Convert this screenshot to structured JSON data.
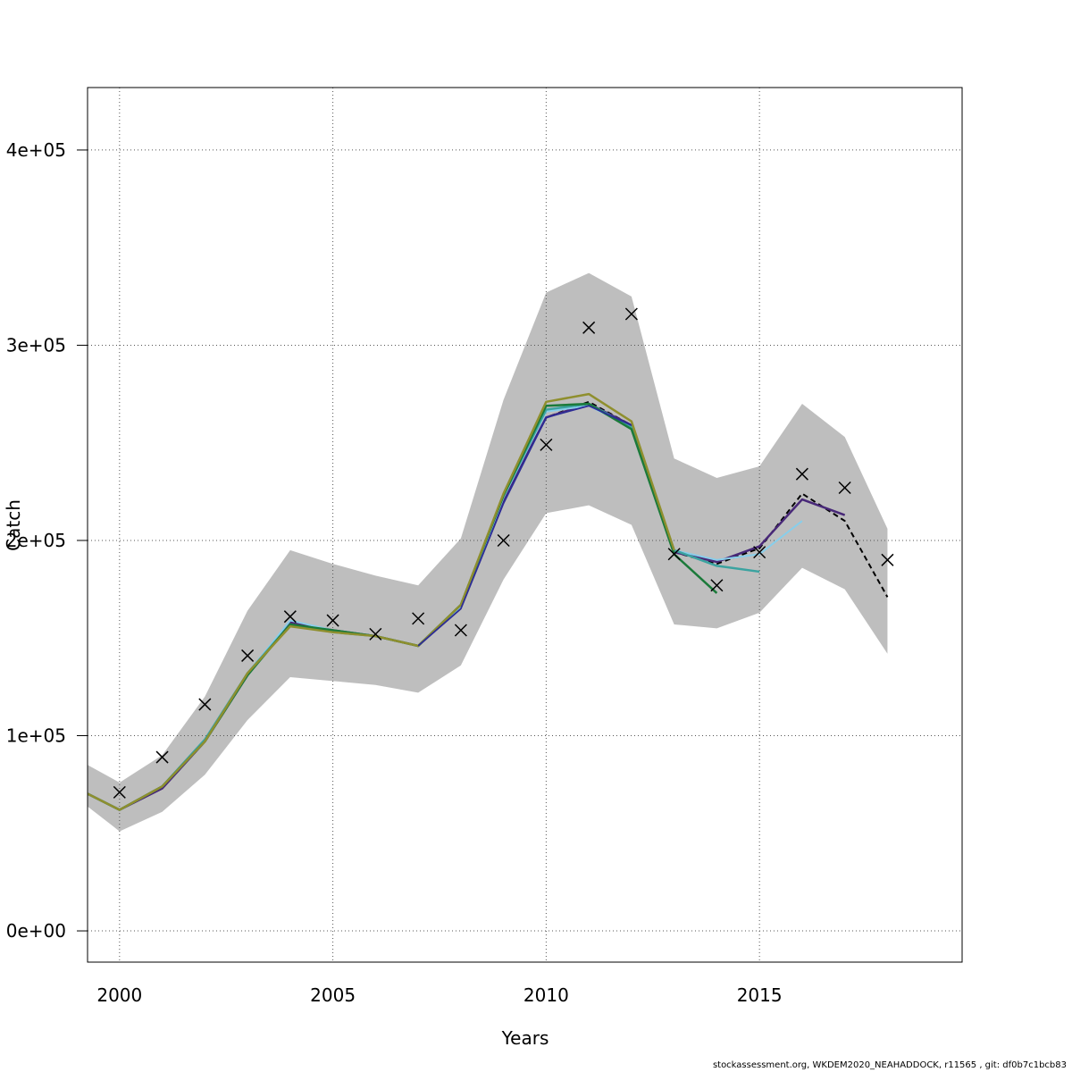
{
  "chart_data": {
    "type": "line",
    "title": "",
    "xlabel": "Years",
    "ylabel": "Catch",
    "xlim": [
      1999.25,
      2019.75
    ],
    "ylim": [
      -16000,
      432000
    ],
    "x_ticks": [
      2000,
      2005,
      2010,
      2015
    ],
    "x_tick_labels": [
      "2000",
      "2005",
      "2010",
      "2015"
    ],
    "y_ticks": [
      0,
      100000,
      200000,
      300000,
      400000
    ],
    "y_tick_labels": [
      "0e+00",
      "1e+05",
      "2e+05",
      "3e+05",
      "4e+05"
    ],
    "grid": true,
    "legend": "none",
    "confidence_band": {
      "x": [
        1999,
        2000,
        2001,
        2002,
        2003,
        2004,
        2005,
        2006,
        2007,
        2008,
        2009,
        2010,
        2011,
        2012,
        2013,
        2014,
        2015,
        2016,
        2017,
        2018
      ],
      "lower": [
        68000,
        51000,
        61000,
        80000,
        108000,
        130000,
        128000,
        126000,
        122000,
        136000,
        180000,
        214000,
        218000,
        208000,
        157000,
        155000,
        163000,
        186000,
        175000,
        142000
      ],
      "upper": [
        88000,
        76000,
        90000,
        120000,
        164000,
        195000,
        188000,
        182000,
        177000,
        201000,
        272000,
        327000,
        337000,
        325000,
        242000,
        232000,
        238000,
        270000,
        253000,
        206000
      ],
      "color": "#bebebe"
    },
    "observations": {
      "marker": "x",
      "x": [
        2000,
        2001,
        2002,
        2003,
        2004,
        2005,
        2006,
        2007,
        2008,
        2009,
        2010,
        2011,
        2012,
        2013,
        2014,
        2015,
        2016,
        2017,
        2018
      ],
      "y": [
        71000,
        89000,
        116000,
        141000,
        161000,
        159000,
        152000,
        160000,
        154000,
        200000,
        249000,
        309000,
        316000,
        193000,
        177000,
        194000,
        234000,
        227000,
        190000
      ]
    },
    "series": [
      {
        "color": "#000000",
        "dash": true,
        "width": 2,
        "x": [
          1999,
          2000,
          2001,
          2002,
          2003,
          2004,
          2005,
          2006,
          2007,
          2008,
          2009,
          2010,
          2011,
          2012,
          2013,
          2014,
          2015,
          2016,
          2017,
          2018
        ],
        "y": [
          73000,
          62000,
          73000,
          97000,
          131000,
          158000,
          154000,
          151000,
          146000,
          166000,
          221000,
          263000,
          271000,
          259000,
          194000,
          188000,
          196000,
          224000,
          210000,
          171000
        ]
      },
      {
        "color": "#482878",
        "dash": false,
        "width": 2.5,
        "x": [
          1999,
          2000,
          2001,
          2002,
          2003,
          2004,
          2005,
          2006,
          2007,
          2008,
          2009,
          2010,
          2011,
          2012,
          2013,
          2014,
          2015,
          2016,
          2017
        ],
        "y": [
          73000,
          62000,
          73000,
          97000,
          131000,
          158000,
          154000,
          151000,
          146000,
          166000,
          221000,
          263000,
          270000,
          259000,
          194000,
          189000,
          197000,
          221000,
          213000
        ]
      },
      {
        "color": "#87ceeb",
        "dash": false,
        "width": 2,
        "x": [
          1999,
          2000,
          2001,
          2002,
          2003,
          2004,
          2005,
          2006,
          2007,
          2008,
          2009,
          2010,
          2011,
          2012,
          2013,
          2014,
          2015,
          2016
        ],
        "y": [
          73000,
          62000,
          74000,
          98000,
          132000,
          159000,
          154000,
          151000,
          146000,
          166000,
          222000,
          266000,
          269000,
          258000,
          195000,
          190000,
          193000,
          210000
        ]
      },
      {
        "color": "#3ba3a0",
        "dash": false,
        "width": 2.5,
        "x": [
          1999,
          2000,
          2001,
          2002,
          2003,
          2004,
          2005,
          2006,
          2007,
          2008,
          2009,
          2010,
          2011,
          2012,
          2013,
          2014,
          2015
        ],
        "y": [
          73000,
          62000,
          74000,
          98000,
          132000,
          157000,
          153000,
          151000,
          146000,
          167000,
          223000,
          267000,
          270000,
          258000,
          195000,
          187000,
          184000
        ]
      },
      {
        "color": "#1b7a3a",
        "dash": false,
        "width": 2.5,
        "x": [
          1999,
          2000,
          2001,
          2002,
          2003,
          2004,
          2005,
          2006,
          2007,
          2008,
          2009,
          2010,
          2011,
          2012,
          2013,
          2014
        ],
        "y": [
          73000,
          62000,
          74000,
          97000,
          131000,
          157000,
          154000,
          151000,
          146000,
          167000,
          223000,
          269000,
          270000,
          257000,
          193000,
          173000
        ]
      },
      {
        "color": "#8f8f2e",
        "dash": false,
        "width": 2.5,
        "x": [
          1999,
          2000,
          2001,
          2002,
          2003,
          2004,
          2005,
          2006,
          2007,
          2008,
          2009,
          2010,
          2011,
          2012,
          2013
        ],
        "y": [
          73000,
          62000,
          74000,
          97000,
          132000,
          156000,
          153000,
          151000,
          146000,
          167000,
          224000,
          271000,
          275000,
          261000,
          195000
        ]
      },
      {
        "color": "#2c2c96",
        "dash": false,
        "width": 1.8,
        "x": [
          2007,
          2008,
          2009,
          2010,
          2011,
          2012
        ],
        "y": [
          146000,
          165000,
          219000,
          263000,
          269000,
          259000
        ]
      }
    ]
  },
  "footer": "stockassessment.org, WKDEM2020_NEAHADDOCK, r11565 , git: df0b7c1bcb83"
}
